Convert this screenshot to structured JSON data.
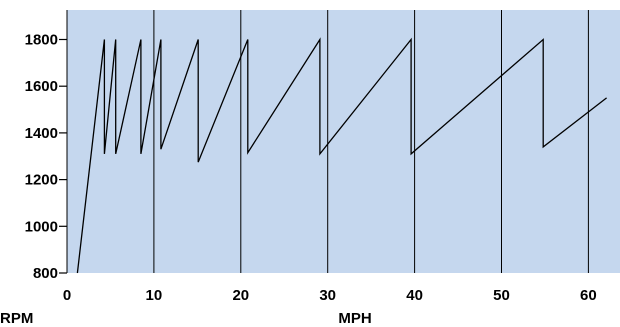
{
  "chart_data": {
    "type": "line",
    "xlabel": "MPH",
    "ylabel": "RPM",
    "xlim": [
      0,
      63
    ],
    "ylim": [
      800,
      1900
    ],
    "x_ticks": [
      0,
      10,
      20,
      30,
      40,
      50,
      60
    ],
    "y_ticks": [
      800,
      1000,
      1200,
      1400,
      1600,
      1800
    ],
    "x_tick_labels": [
      "0",
      "10",
      "20",
      "30",
      "40",
      "50",
      "60"
    ],
    "y_tick_labels": [
      "800",
      "1000",
      "1200",
      "1400",
      "1600",
      "1800"
    ],
    "vertical_grid": true,
    "horizontal_grid": false,
    "plot_background": "#c5d7ee",
    "line_color": "#000000",
    "series": [
      {
        "points": [
          [
            1.2,
            800
          ],
          [
            4.3,
            1800
          ],
          [
            4.3,
            1310
          ],
          [
            5.6,
            1800
          ],
          [
            5.6,
            1310
          ],
          [
            8.5,
            1800
          ],
          [
            8.5,
            1310
          ],
          [
            10.8,
            1800
          ],
          [
            10.8,
            1330
          ],
          [
            15.1,
            1800
          ],
          [
            15.1,
            1275
          ],
          [
            20.8,
            1800
          ],
          [
            20.8,
            1315
          ],
          [
            29.1,
            1800
          ],
          [
            29.1,
            1310
          ],
          [
            39.6,
            1800
          ],
          [
            39.6,
            1310
          ],
          [
            54.8,
            1800
          ],
          [
            54.8,
            1340
          ],
          [
            62.1,
            1550
          ]
        ]
      }
    ]
  }
}
